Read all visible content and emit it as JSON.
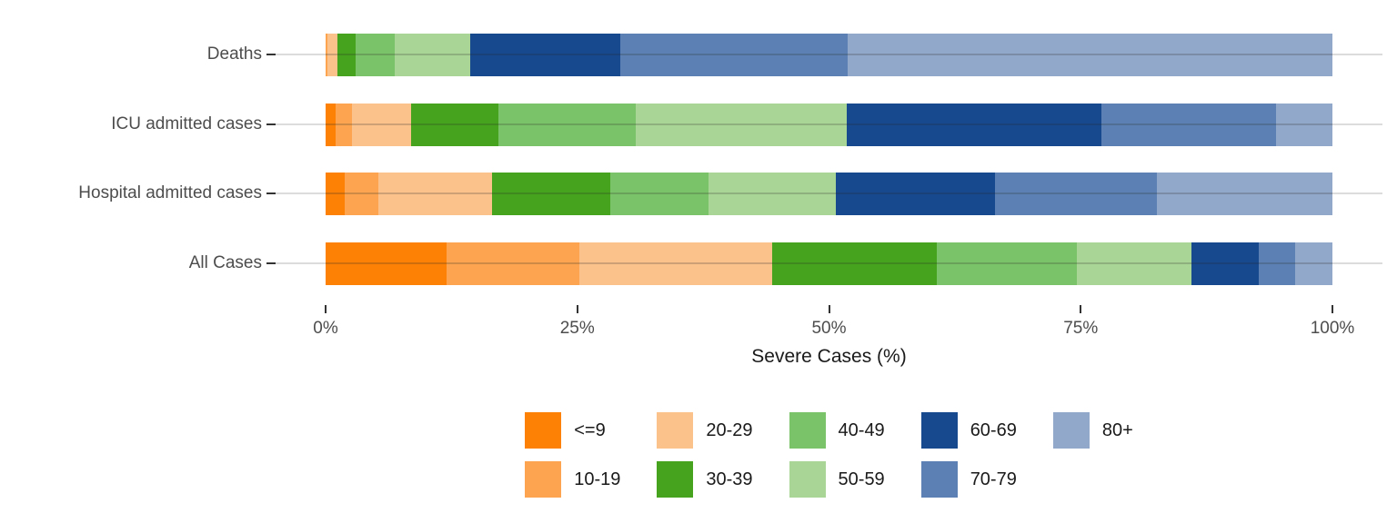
{
  "chart_data": {
    "type": "bar",
    "orientation": "horizontal",
    "stacked": true,
    "unit": "percent",
    "title": "",
    "xlabel": "Severe Cases (%)",
    "ylabel": "",
    "xlim": [
      0,
      100
    ],
    "x_ticks": [
      0,
      25,
      50,
      75,
      100
    ],
    "x_tick_labels": [
      "0%",
      "25%",
      "50%",
      "75%",
      "100%"
    ],
    "grid": "horizontal category lines",
    "legend_position": "bottom",
    "legend_rows": 2,
    "categories": [
      "Deaths",
      "ICU admitted cases",
      "Hospital admitted cases",
      "All Cases"
    ],
    "series": [
      {
        "name": "<=9",
        "color": "#FC8105",
        "values": [
          0.0,
          1.0,
          1.9,
          12.0
        ]
      },
      {
        "name": "10-19",
        "color": "#FCA44F",
        "values": [
          0.2,
          1.6,
          3.3,
          13.2
        ]
      },
      {
        "name": "20-29",
        "color": "#FCC28C",
        "values": [
          1.0,
          5.9,
          11.3,
          19.2
        ]
      },
      {
        "name": "30-39",
        "color": "#45A31D",
        "values": [
          1.8,
          8.7,
          11.8,
          16.3
        ]
      },
      {
        "name": "40-49",
        "color": "#7BC369",
        "values": [
          3.9,
          13.6,
          9.7,
          13.9
        ]
      },
      {
        "name": "50-59",
        "color": "#A9D696",
        "values": [
          7.5,
          21.0,
          12.7,
          11.4
        ]
      },
      {
        "name": "60-69",
        "color": "#17498F",
        "values": [
          14.9,
          25.3,
          15.8,
          6.7
        ]
      },
      {
        "name": "70-79",
        "color": "#5C80B3",
        "values": [
          22.6,
          17.3,
          16.1,
          3.6
        ]
      },
      {
        "name": "80+",
        "color": "#91A8CA",
        "values": [
          48.1,
          5.6,
          17.4,
          3.7
        ]
      }
    ],
    "colors_semantics": {
      "accent_orange": "#FC8105",
      "accent_green": "#45A31D",
      "accent_blue": "#17498F",
      "gridline": "#DCDCDC",
      "axis_text": "#4D4D4D",
      "tick_mark": "#333333"
    }
  }
}
